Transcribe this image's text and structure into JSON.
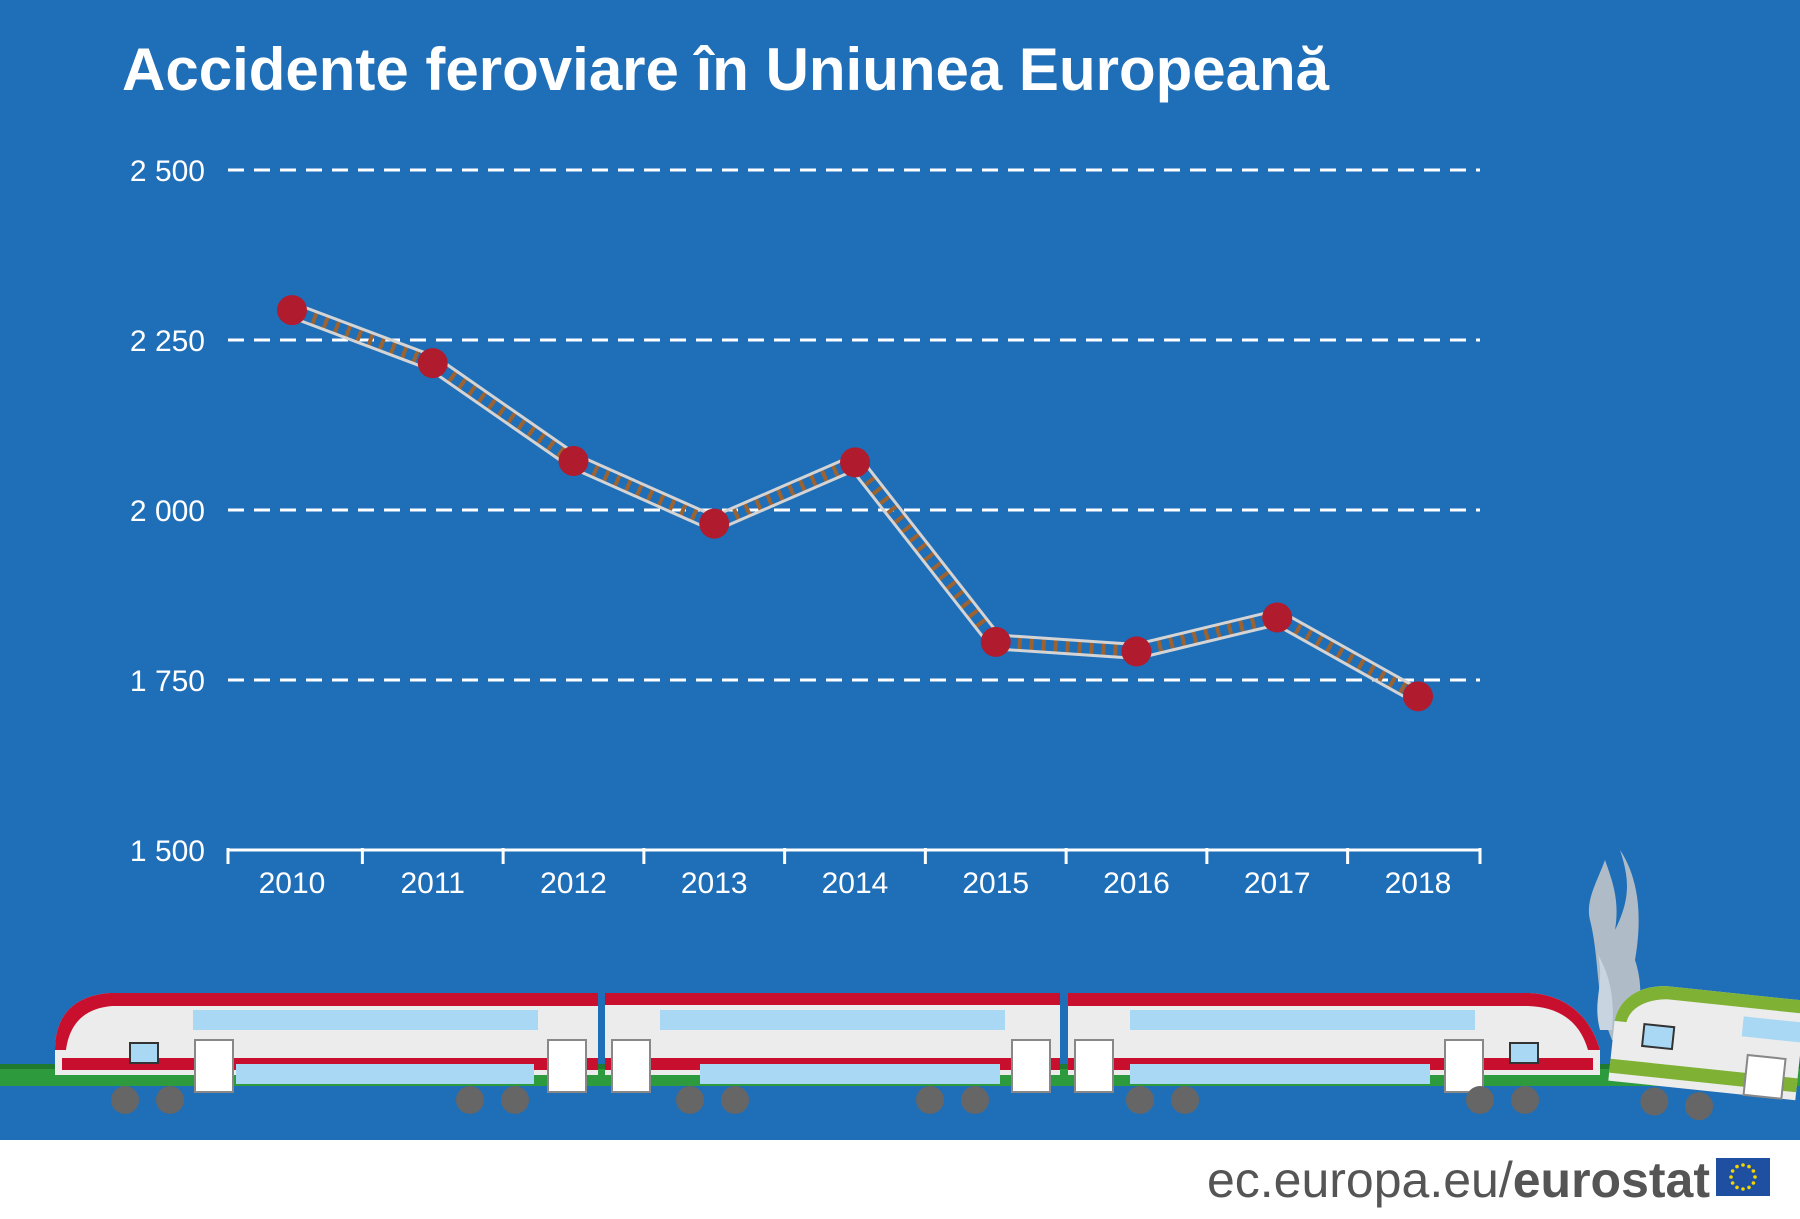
{
  "chart_data": {
    "type": "line",
    "title": "Accidente feroviare în Uniunea Europeană",
    "xlabel": "",
    "ylabel": "",
    "x": [
      "2010",
      "2011",
      "2012",
      "2013",
      "2014",
      "2015",
      "2016",
      "2017",
      "2018"
    ],
    "series": [
      {
        "values": [
          2294,
          2216,
          2072,
          1980,
          2070,
          1806,
          1792,
          1842,
          1726
        ]
      }
    ],
    "ylim": [
      1500,
      2500
    ],
    "yticks": [
      1500,
      1750,
      2000,
      2250,
      2500
    ],
    "ytick_labels": [
      "1 500",
      "1 750",
      "2 000",
      "2 250",
      "2 500"
    ],
    "grid": true,
    "grid_style": "dashed",
    "legend": "none",
    "marker_color": "#b01c2e",
    "background_color": "#1f6eb8",
    "line_style": "railway-track"
  },
  "footer": {
    "source_prefix": "ec.europa.eu/",
    "source_brand": "eurostat"
  },
  "colors": {
    "background": "#1f6eb8",
    "grass": "#2e9a3e",
    "train_red": "#c8102e",
    "train_green": "#7fb134",
    "window": "#a9d8f4",
    "track_rail": "#c9c9c9",
    "track_tie": "#9b6332",
    "eu_blue": "#1f4fa0",
    "eu_star": "#f5d400"
  }
}
